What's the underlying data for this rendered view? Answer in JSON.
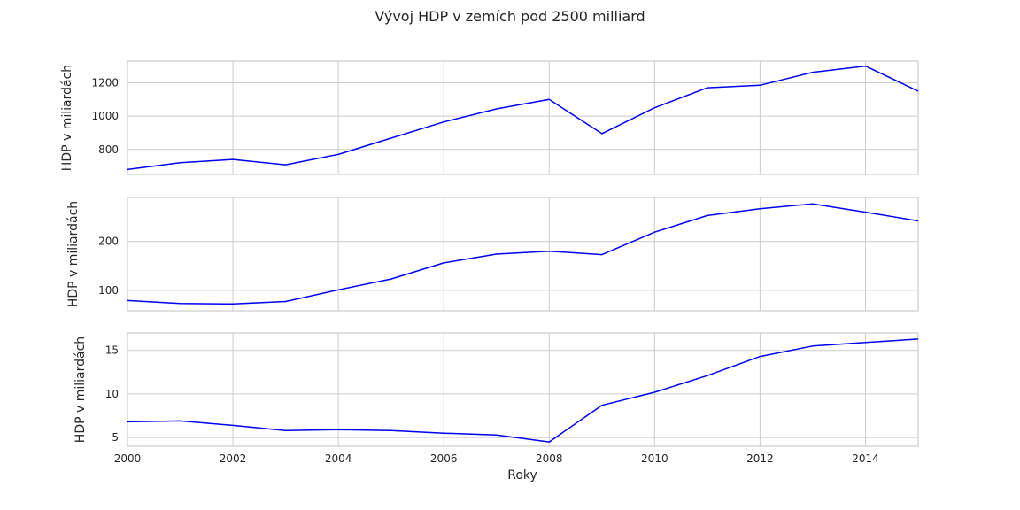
{
  "chart_data": {
    "type": "line",
    "title": "Vývoj HDP v zemích pod 2500 milliard",
    "xlabel": "Roky",
    "x": [
      2000,
      2001,
      2002,
      2003,
      2004,
      2005,
      2006,
      2007,
      2008,
      2009,
      2010,
      2011,
      2012,
      2013,
      2014,
      2015
    ],
    "xticks": [
      2000,
      2002,
      2004,
      2006,
      2008,
      2010,
      2012,
      2014
    ],
    "xlim": [
      2000,
      2015
    ],
    "grid": true,
    "line_color": "#0000ee",
    "panels": [
      {
        "ylabel": "HDP v miliardách",
        "ylim": [
          650,
          1330
        ],
        "yticks": [
          800,
          1000,
          1200
        ],
        "values": [
          680,
          720,
          740,
          708,
          770,
          868,
          965,
          1043,
          1100,
          895,
          1050,
          1170,
          1185,
          1263,
          1300,
          1150
        ]
      },
      {
        "ylabel": "HDP v miliardách",
        "ylim": [
          58,
          290
        ],
        "yticks": [
          100,
          200
        ],
        "values": [
          79,
          73,
          72,
          77,
          101,
          123,
          156,
          174,
          180,
          173,
          219,
          253,
          267,
          277,
          260,
          242
        ]
      },
      {
        "ylabel": "HDP v miliardách",
        "ylim": [
          4.0,
          17.0
        ],
        "yticks": [
          5,
          10,
          15
        ],
        "values": [
          6.8,
          6.9,
          6.4,
          5.8,
          5.9,
          5.8,
          5.5,
          5.3,
          4.5,
          8.7,
          10.2,
          12.1,
          14.3,
          15.5,
          15.9,
          16.3
        ]
      }
    ]
  }
}
